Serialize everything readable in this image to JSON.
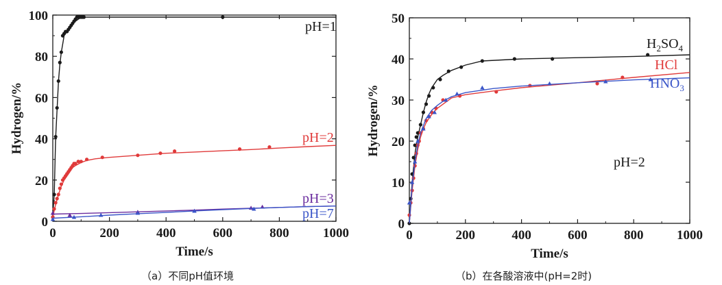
{
  "figure": {
    "captions": [
      "（a）不同pH值环境",
      "（b）在各酸溶液中(pH=2时)"
    ]
  },
  "chart_data": [
    {
      "type": "line",
      "xlabel": "Time/s",
      "ylabel": "Hydrogen/%",
      "xlim": [
        0,
        1000
      ],
      "ylim": [
        0,
        100
      ],
      "xticks": [
        0,
        200,
        400,
        600,
        800,
        1000
      ],
      "yticks": [
        0,
        20,
        40,
        60,
        80,
        100
      ],
      "grid": false,
      "series": [
        {
          "name": "pH=1",
          "color": "#1a1a1a",
          "line_x": [
            0,
            5,
            10,
            15,
            20,
            25,
            30,
            35,
            40,
            50,
            60,
            70,
            80,
            90,
            100,
            120,
            150,
            200,
            300,
            400,
            600,
            800,
            1000
          ],
          "line_y": [
            3,
            13,
            40,
            54,
            68,
            76,
            82,
            86,
            90,
            92,
            94,
            96,
            97,
            98,
            99,
            99,
            99,
            99,
            99,
            99,
            99,
            99,
            99
          ],
          "points_x": [
            0,
            5,
            10,
            15,
            20,
            25,
            30,
            35,
            40,
            45,
            50,
            55,
            60,
            65,
            70,
            75,
            80,
            85,
            90,
            95,
            100,
            105,
            110,
            600
          ],
          "points_y": [
            2,
            13,
            41,
            55,
            68,
            77,
            82,
            90,
            91,
            92,
            92,
            93,
            94,
            95,
            96,
            97,
            98,
            99,
            99,
            99,
            99,
            99,
            99,
            99
          ]
        },
        {
          "name": "pH=2",
          "color": "#e03a3a",
          "line_x": [
            0,
            10,
            20,
            30,
            40,
            50,
            60,
            70,
            80,
            100,
            120,
            150,
            200,
            300,
            400,
            500,
            600,
            700,
            800,
            900,
            1000
          ],
          "line_y": [
            2,
            8,
            13,
            17,
            20,
            22,
            24,
            26,
            27,
            28.5,
            29.5,
            30.3,
            31,
            32,
            33,
            33.6,
            34.2,
            34.8,
            35.5,
            36.2,
            36.8
          ],
          "points_x": [
            0,
            5,
            10,
            15,
            20,
            25,
            30,
            35,
            40,
            45,
            50,
            55,
            60,
            65,
            70,
            75,
            80,
            90,
            100,
            120,
            175,
            300,
            380,
            430,
            660,
            765
          ],
          "points_y": [
            2,
            6,
            9,
            11,
            13,
            16,
            18,
            20,
            21,
            22,
            23,
            24,
            25,
            26,
            27,
            28,
            28,
            29,
            29,
            30,
            31,
            32,
            33,
            34,
            35,
            36
          ]
        },
        {
          "name": "pH=3",
          "color": "#6a2c9e",
          "line_x": [
            0,
            100,
            200,
            300,
            400,
            500,
            600,
            700,
            800,
            900,
            1000
          ],
          "line_y": [
            3.5,
            3.8,
            4.2,
            4.6,
            5.0,
            5.4,
            5.9,
            6.3,
            6.7,
            7.1,
            7.4
          ],
          "points_x": [
            0,
            60,
            300,
            500,
            700,
            740
          ],
          "points_y": [
            4,
            3,
            4.5,
            5,
            6.5,
            7
          ]
        },
        {
          "name": "pH=7",
          "color": "#3a55c8",
          "line_x": [
            0,
            100,
            200,
            300,
            400,
            500,
            600,
            700,
            800,
            900,
            1000
          ],
          "line_y": [
            1.5,
            2.2,
            3.0,
            3.7,
            4.3,
            5.0,
            5.6,
            6.2,
            6.7,
            7.1,
            7.4
          ],
          "points_x": [
            0,
            75,
            170,
            300,
            500,
            710
          ],
          "points_y": [
            1,
            2,
            3,
            4,
            5,
            6
          ]
        }
      ]
    },
    {
      "type": "line",
      "xlabel": "Time/s",
      "ylabel": "Hydrogen/%",
      "xlim": [
        0,
        1000
      ],
      "ylim": [
        0,
        50
      ],
      "xticks": [
        0,
        200,
        400,
        600,
        800,
        1000
      ],
      "yticks": [
        0,
        10,
        20,
        30,
        40,
        50
      ],
      "grid": false,
      "annotation": "pH=2",
      "series": [
        {
          "name": "H",
          "name_sub1": "2",
          "name_mid": "SO",
          "name_sub2": "4",
          "color": "#1a1a1a",
          "line_x": [
            0,
            10,
            20,
            30,
            40,
            50,
            60,
            70,
            80,
            100,
            120,
            150,
            200,
            260,
            400,
            600,
            800,
            1000
          ],
          "line_y": [
            0,
            10,
            17,
            21,
            24,
            27,
            29.5,
            31.5,
            33,
            35,
            36,
            37.2,
            38.5,
            39.5,
            40,
            40.3,
            40.6,
            41
          ],
          "points_x": [
            0,
            5,
            10,
            15,
            20,
            25,
            30,
            40,
            50,
            60,
            70,
            85,
            110,
            140,
            185,
            260,
            375,
            510,
            850
          ],
          "points_y": [
            0,
            6,
            12,
            16,
            19,
            21,
            22,
            24,
            27,
            29,
            31,
            33,
            35,
            37,
            38,
            39.5,
            40,
            40,
            41
          ]
        },
        {
          "name": "HCl",
          "color": "#e03a3a",
          "line_x": [
            0,
            10,
            20,
            30,
            40,
            50,
            60,
            80,
            100,
            150,
            200,
            300,
            400,
            600,
            800,
            1000
          ],
          "line_y": [
            0,
            8,
            14,
            18,
            21,
            23,
            24.5,
            26.5,
            28,
            30.5,
            31.3,
            32.2,
            33,
            34.2,
            35.5,
            36.7
          ],
          "points_x": [
            0,
            5,
            10,
            15,
            20,
            25,
            30,
            35,
            40,
            50,
            60,
            70,
            80,
            95,
            120,
            180,
            310,
            430,
            670,
            760
          ],
          "points_y": [
            2,
            5,
            8,
            11,
            14,
            17,
            19,
            20,
            22,
            23,
            25,
            26,
            27,
            28,
            30,
            31,
            32,
            33.5,
            34,
            35.5
          ]
        },
        {
          "name": "HNO",
          "name_sub1": "3",
          "color": "#3a55c8",
          "line_x": [
            0,
            10,
            20,
            30,
            40,
            60,
            80,
            100,
            120,
            150,
            200,
            300,
            400,
            600,
            800,
            1000
          ],
          "line_y": [
            0,
            9,
            15,
            19,
            22,
            25.5,
            27.5,
            28.7,
            29.7,
            30.8,
            31.8,
            32.8,
            33.4,
            34.2,
            34.9,
            35.4
          ],
          "points_x": [
            0,
            10,
            20,
            30,
            50,
            70,
            90,
            130,
            170,
            260,
            500,
            700,
            860
          ],
          "points_y": [
            5,
            10,
            15,
            20,
            23,
            26,
            27,
            30,
            31.5,
            33,
            34,
            34.5,
            35
          ]
        }
      ]
    }
  ]
}
